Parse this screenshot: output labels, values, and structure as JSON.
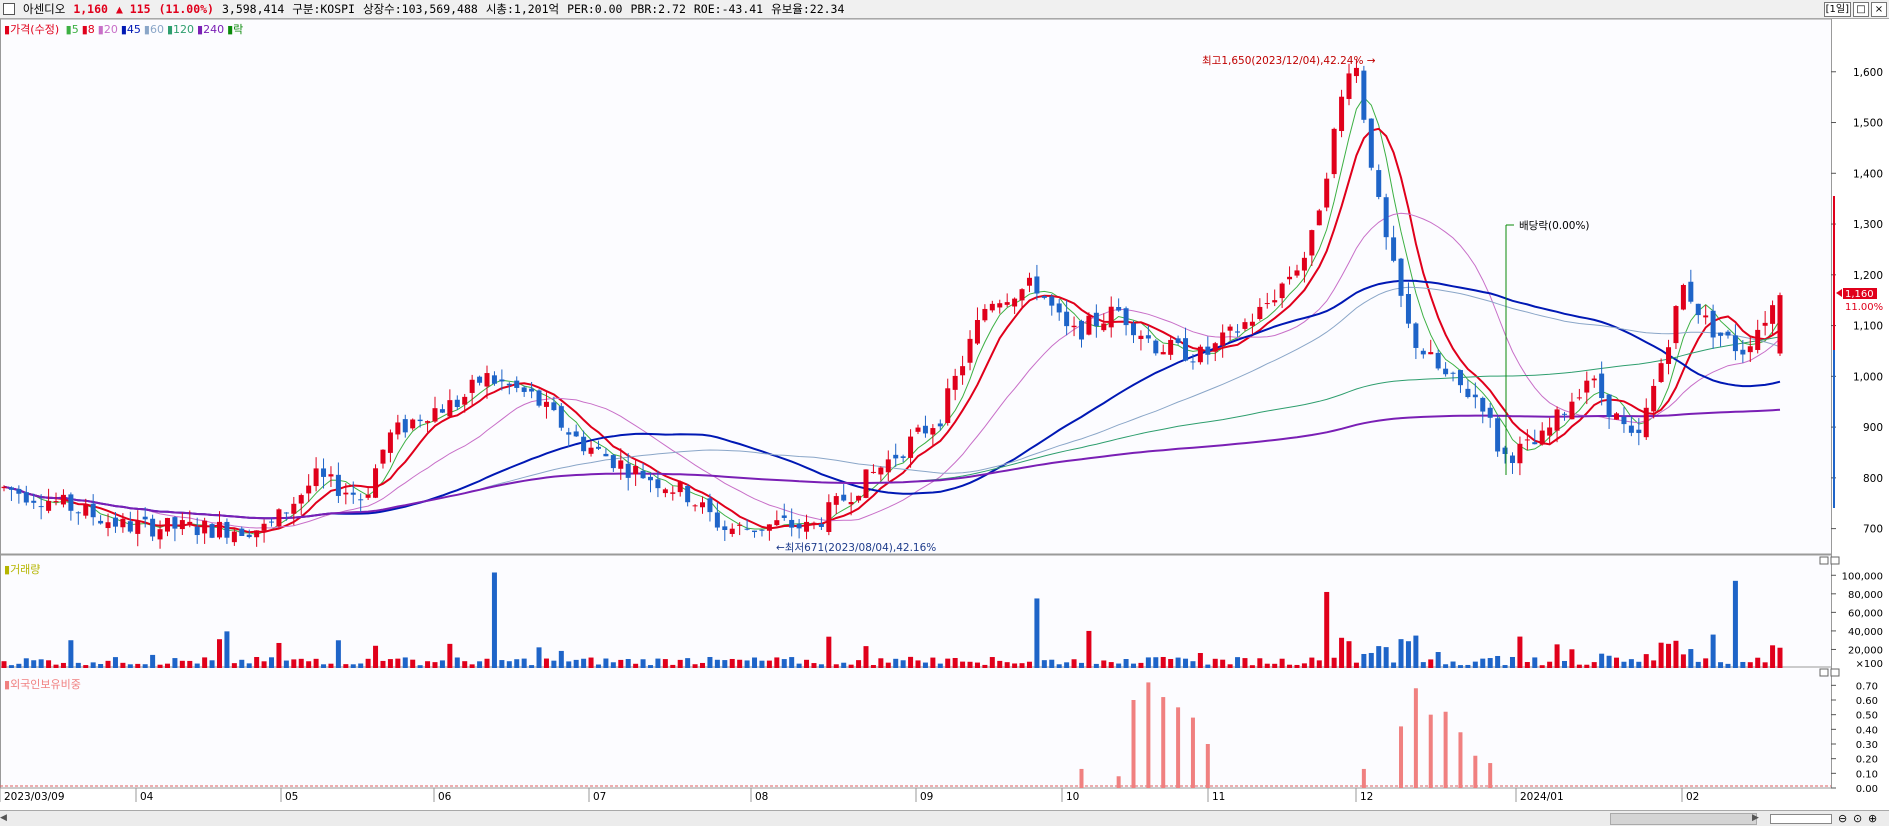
{
  "header": {
    "name": "아센디오",
    "price": "1,160",
    "change": "▲ 115",
    "pct": "(11.00%)",
    "volume": "3,598,414",
    "market": "구분:KOSPI",
    "shares": "상장수:103,569,488",
    "mcap": "시총:1,201억",
    "per": "PER:0.00",
    "pbr": "PBR:2.72",
    "roe": "ROE:-43.41",
    "float": "유보율:22.34",
    "period_btn": "[1일]"
  },
  "legend_price": {
    "label": "가격(수정)",
    "items": [
      {
        "label": "5",
        "color": "#3cb043"
      },
      {
        "label": "8",
        "color": "#e0001b"
      },
      {
        "label": "20",
        "color": "#c86fc8"
      },
      {
        "label": "45",
        "color": "#0018b4"
      },
      {
        "label": "60",
        "color": "#8aa6c8"
      },
      {
        "label": "120",
        "color": "#2e9e6e"
      },
      {
        "label": "240",
        "color": "#7a1fb5"
      },
      {
        "label": "락",
        "color": "#0a8a0a"
      }
    ]
  },
  "legend_volume": "거래량",
  "legend_foreign": "외국인보유비중",
  "annotations": {
    "high": "최고1,650(2023/12/04),42.24%",
    "low": "최저671(2023/08/04),42.16%",
    "dividend": "배당락(0.00%)"
  },
  "current_tag": {
    "price": "1,160",
    "pct": "11.00%"
  },
  "colors": {
    "up": "#e0001b",
    "down": "#1e64c8",
    "foreign": "#f08080"
  },
  "chart_data": [
    {
      "type": "candlestick",
      "title": "가격(수정)",
      "ylim": [
        650,
        1700
      ],
      "yticks": [
        700,
        800,
        900,
        1000,
        1100,
        1200,
        1300,
        1400,
        1500,
        1600
      ],
      "ytick_labels": [
        "700",
        "800",
        "900",
        "1,000",
        "1,100",
        "1,200",
        "1,300",
        "1,400",
        "1,500",
        "1,600"
      ],
      "xtick_labels": [
        "2023/03/09",
        "04",
        "05",
        "06",
        "07",
        "08",
        "09",
        "10",
        "11",
        "12",
        "2024/01",
        "02"
      ],
      "moving_averages": [
        "5",
        "8",
        "20",
        "45",
        "60",
        "120",
        "240"
      ],
      "key_points": [
        {
          "date": "2023/12/04",
          "label": "high",
          "value": 1650
        },
        {
          "date": "2023/08/04",
          "label": "low",
          "value": 671
        }
      ],
      "last": 1160
    },
    {
      "type": "bar",
      "title": "거래량",
      "ylim": [
        0,
        110000
      ],
      "ytick_labels": [
        "100,000",
        "80,000",
        "60,000",
        "40,000",
        "20,000",
        "×100"
      ]
    },
    {
      "type": "bar",
      "title": "외국인보유비중",
      "ylim": [
        0,
        0.75
      ],
      "ytick_labels": [
        "0.70",
        "0.60",
        "0.50",
        "0.40",
        "0.30",
        "0.20",
        "0.10",
        "0.00"
      ]
    }
  ]
}
